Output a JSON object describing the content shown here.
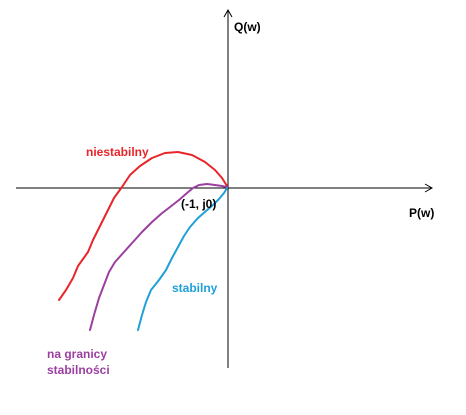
{
  "axes": {
    "horizontal_label": "P(w)",
    "vertical_label": "Q(w)",
    "axis_color": "#000000"
  },
  "point": {
    "label": "(-1, j0)"
  },
  "curves": [
    {
      "key": "unstable",
      "label": "niestabilny",
      "color": "#e8262a"
    },
    {
      "key": "boundary",
      "label_line1": "na granicy",
      "label_line2": "stabilności",
      "color": "#9b3fa0"
    },
    {
      "key": "stable",
      "label": "stabilny",
      "color": "#1fa0d8"
    }
  ]
}
